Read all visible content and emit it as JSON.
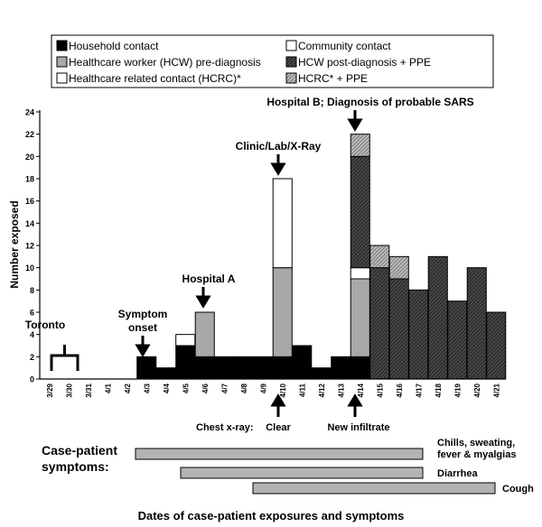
{
  "chart_data": {
    "type": "bar",
    "stacked": true,
    "ylabel": "Number exposed",
    "xlabel": "Dates of case-patient exposures and symptoms",
    "ylim": [
      0,
      24
    ],
    "yticks": [
      0,
      2,
      4,
      6,
      8,
      10,
      12,
      14,
      16,
      18,
      20,
      22,
      24
    ],
    "grid": false,
    "legend_position": "top",
    "categories": [
      "3/29",
      "3/30",
      "3/31",
      "4/1",
      "4/2",
      "4/3",
      "4/4",
      "4/5",
      "4/6",
      "4/7",
      "4/8",
      "4/9",
      "4/10",
      "4/11",
      "4/12",
      "4/13",
      "4/14",
      "4/15",
      "4/16",
      "4/17",
      "4/18",
      "4/19",
      "4/20",
      "4/21"
    ],
    "series": [
      {
        "name": "Household contact",
        "key": "household",
        "fill": "black",
        "values": [
          0,
          0,
          0,
          0,
          0,
          2,
          1,
          3,
          2,
          2,
          2,
          2,
          2,
          3,
          1,
          2,
          2,
          0,
          0,
          0,
          0,
          0,
          0,
          0
        ]
      },
      {
        "name": "Healthcare worker (HCW) pre-diagnosis",
        "key": "hcw_pre",
        "fill": "gray",
        "values": [
          0,
          0,
          0,
          0,
          0,
          0,
          0,
          0,
          4,
          0,
          0,
          0,
          8,
          0,
          0,
          0,
          7,
          0,
          0,
          0,
          0,
          0,
          0,
          0
        ]
      },
      {
        "name": "Healthcare related contact (HCRC)*",
        "key": "hcrc",
        "fill": "white",
        "values": [
          0,
          0,
          0,
          0,
          0,
          0,
          0,
          0,
          0,
          0,
          0,
          0,
          8,
          0,
          0,
          0,
          0,
          0,
          0,
          0,
          0,
          0,
          0,
          0
        ]
      },
      {
        "name": "Community contact",
        "key": "community",
        "fill": "white",
        "values": [
          0,
          0,
          0,
          0,
          0,
          0,
          0,
          1,
          0,
          0,
          0,
          0,
          0,
          0,
          0,
          0,
          1,
          0,
          0,
          0,
          0,
          0,
          0,
          0
        ]
      },
      {
        "name": "HCW post-diagnosis + PPE",
        "key": "hcw_post_ppe",
        "fill": "darkhatch",
        "values": [
          0,
          0,
          0,
          0,
          0,
          0,
          0,
          0,
          0,
          0,
          0,
          0,
          0,
          0,
          0,
          0,
          10,
          10,
          9,
          8,
          11,
          7,
          10,
          6
        ]
      },
      {
        "name": "HCRC* + PPE",
        "key": "hcrc_ppe",
        "fill": "lighthatch",
        "values": [
          0,
          0,
          0,
          0,
          0,
          0,
          0,
          0,
          0,
          0,
          0,
          0,
          0,
          0,
          0,
          0,
          2,
          2,
          2,
          0,
          0,
          0,
          0,
          0
        ]
      }
    ],
    "legend": [
      {
        "label": "Household contact",
        "fill": "black"
      },
      {
        "label": "Community contact",
        "fill": "white"
      },
      {
        "label": "Healthcare worker (HCW) pre-diagnosis",
        "fill": "gray"
      },
      {
        "label": "HCW post-diagnosis + PPE",
        "fill": "darkhatch"
      },
      {
        "label": "Healthcare related contact (HCRC)*",
        "fill": "white"
      },
      {
        "label": "HCRC* + PPE",
        "fill": "lighthatch"
      }
    ],
    "annotations": [
      {
        "text": "Toronto",
        "x": "3/30"
      },
      {
        "text": "Symptom",
        "x": "4/3"
      },
      {
        "text": "onset",
        "x": "4/3"
      },
      {
        "text": "Hospital A",
        "x": "4/6"
      },
      {
        "text": "Clinic/Lab/X-Ray",
        "x": "4/10"
      },
      {
        "text": "Hospital B; Diagnosis of probable SARS",
        "x": "4/14"
      }
    ],
    "chest_xray": {
      "label": "Chest x-ray:",
      "items": [
        {
          "text": "Clear",
          "x": "4/10"
        },
        {
          "text": "New infiltrate",
          "x": "4/14"
        }
      ]
    },
    "symptoms": {
      "title_line1": "Case-patient",
      "title_line2": "symptoms:",
      "bars": [
        {
          "label_lines": [
            "Chills, sweating,",
            "fever & myalgias"
          ],
          "start": "4/3",
          "end": "4/17"
        },
        {
          "label_lines": [
            "Diarrhea"
          ],
          "start": "4/5",
          "end": "4/17"
        },
        {
          "label_lines": [
            "Cough"
          ],
          "start": "4/9",
          "end": "4/21"
        }
      ]
    }
  }
}
